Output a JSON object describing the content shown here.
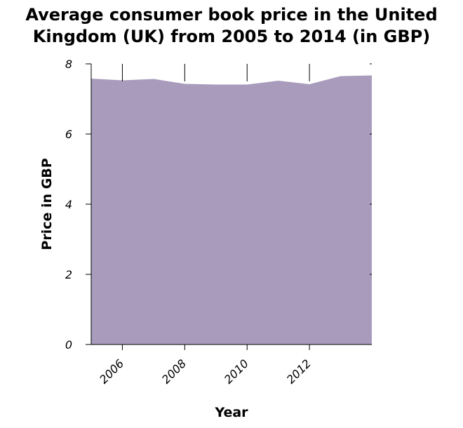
{
  "chart_data": {
    "type": "area",
    "title_lines": [
      "Average consumer book price in the United",
      "Kingdom (UK) from 2005 to 2014 (in GBP)"
    ],
    "xlabel": "Year",
    "ylabel": "Price in GBP",
    "x": [
      2005,
      2006,
      2007,
      2008,
      2009,
      2010,
      2011,
      2012,
      2013,
      2014
    ],
    "series": [
      {
        "values": [
          7.58,
          7.53,
          7.57,
          7.43,
          7.41,
          7.41,
          7.52,
          7.42,
          7.65,
          7.67
        ]
      }
    ],
    "xlim": [
      2005,
      2014
    ],
    "ylim": [
      0,
      8
    ],
    "x_ticks": [
      2006,
      2008,
      2010,
      2012
    ],
    "y_ticks": [
      0,
      2,
      4,
      6,
      8
    ],
    "grid": false,
    "colors": {
      "area_fill": "#a89bbc",
      "axis": "#000000",
      "background": "#ffffff"
    }
  }
}
